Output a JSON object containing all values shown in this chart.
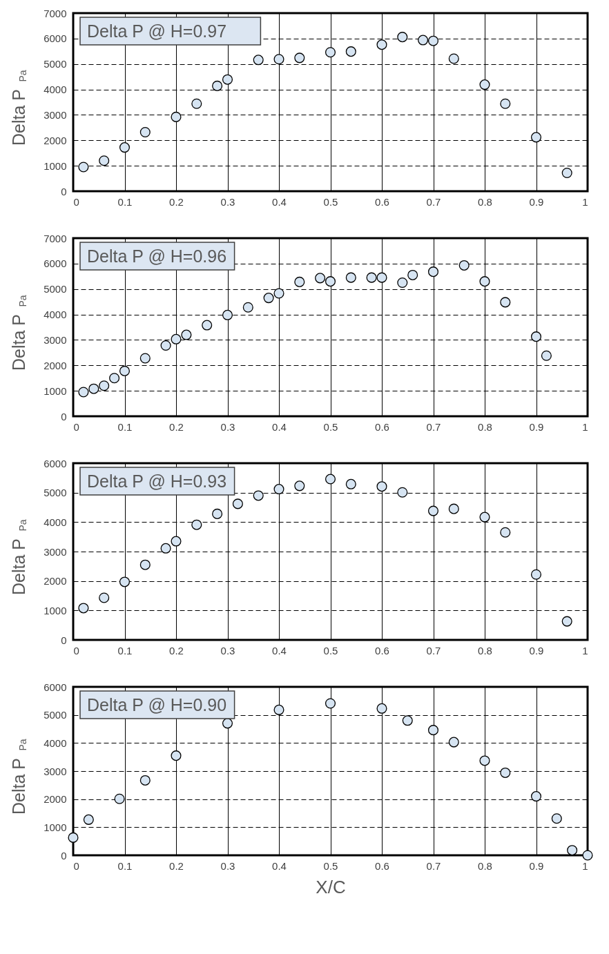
{
  "chart_data": [
    {
      "type": "scatter",
      "title": "Delta P   @  H=0.97",
      "ylabel": "Delta P $_{Pa}$",
      "color": "#d6e4f2",
      "marker": "circle",
      "grid": true,
      "x": [
        0.02,
        0.06,
        0.1,
        0.14,
        0.2,
        0.24,
        0.28,
        0.3,
        0.36,
        0.4,
        0.44,
        0.5,
        0.54,
        0.6,
        0.64,
        0.68,
        0.7,
        0.74,
        0.8,
        0.84,
        0.9,
        0.96
      ],
      "values": [
        950,
        1200,
        1720,
        2320,
        2920,
        3440,
        4140,
        4390,
        5160,
        5190,
        5240,
        5460,
        5490,
        5760,
        6060,
        5940,
        5910,
        5210,
        4190,
        3440,
        2120,
        720
      ],
      "xlim": [
        0,
        1
      ],
      "ylim": [
        0,
        7000
      ],
      "xticks": [
        0,
        0.1,
        0.2,
        0.3,
        0.4,
        0.5,
        0.6,
        0.7,
        0.8,
        0.9,
        1
      ],
      "yticks": [
        0,
        1000,
        2000,
        3000,
        4000,
        5000,
        6000,
        7000
      ]
    },
    {
      "type": "scatter",
      "title": "Delta P @ H=0.96",
      "ylabel": "Delta P $_{Pa}$",
      "color": "#d6e4f2",
      "marker": "circle",
      "grid": true,
      "x": [
        0.02,
        0.04,
        0.06,
        0.08,
        0.1,
        0.14,
        0.18,
        0.2,
        0.22,
        0.26,
        0.3,
        0.34,
        0.38,
        0.4,
        0.44,
        0.48,
        0.5,
        0.54,
        0.58,
        0.6,
        0.64,
        0.66,
        0.7,
        0.76,
        0.8,
        0.84,
        0.9,
        0.92
      ],
      "values": [
        950,
        1080,
        1200,
        1500,
        1780,
        2280,
        2780,
        3030,
        3200,
        3580,
        3980,
        4280,
        4650,
        4830,
        5280,
        5430,
        5300,
        5450,
        5450,
        5450,
        5250,
        5550,
        5680,
        5930,
        5300,
        4480,
        3130,
        2380
      ],
      "xlim": [
        0,
        1
      ],
      "ylim": [
        0,
        7000
      ],
      "xticks": [
        0,
        0.1,
        0.2,
        0.3,
        0.4,
        0.5,
        0.6,
        0.7,
        0.8,
        0.9,
        1
      ],
      "yticks": [
        0,
        1000,
        2000,
        3000,
        4000,
        5000,
        6000,
        7000
      ]
    },
    {
      "type": "scatter",
      "title": "Delta P @ H=0.93",
      "ylabel": "Delta P $_{Pa}$",
      "color": "#d6e4f2",
      "marker": "circle",
      "grid": true,
      "x": [
        0.02,
        0.06,
        0.1,
        0.14,
        0.18,
        0.2,
        0.24,
        0.28,
        0.32,
        0.36,
        0.4,
        0.44,
        0.5,
        0.54,
        0.6,
        0.64,
        0.7,
        0.74,
        0.8,
        0.84,
        0.9,
        0.96
      ],
      "values": [
        1080,
        1430,
        1970,
        2550,
        3110,
        3350,
        3910,
        4280,
        4620,
        4900,
        5120,
        5230,
        5460,
        5290,
        5210,
        5010,
        4380,
        4450,
        4170,
        3650,
        2220,
        630
      ],
      "xlim": [
        0,
        1
      ],
      "ylim": [
        0,
        6000
      ],
      "xticks": [
        0,
        0.1,
        0.2,
        0.3,
        0.4,
        0.5,
        0.6,
        0.7,
        0.8,
        0.9,
        1
      ],
      "yticks": [
        0,
        1000,
        2000,
        3000,
        4000,
        5000,
        6000
      ]
    },
    {
      "type": "scatter",
      "title": "Delta P @ H=0.90",
      "ylabel": "Delta P $_{Pa}$",
      "xlabel": "X/C",
      "color": "#d6e4f2",
      "marker": "circle",
      "grid": true,
      "x": [
        0.0,
        0.03,
        0.09,
        0.14,
        0.2,
        0.3,
        0.4,
        0.5,
        0.6,
        0.65,
        0.7,
        0.74,
        0.8,
        0.84,
        0.9,
        0.94,
        0.97,
        1.0
      ],
      "values": [
        630,
        1270,
        2010,
        2670,
        3550,
        4700,
        5180,
        5410,
        5230,
        4800,
        4460,
        4030,
        3370,
        2940,
        2100,
        1310,
        180,
        0
      ],
      "xlim": [
        0,
        1
      ],
      "ylim": [
        0,
        6000
      ],
      "xticks": [
        0,
        0.1,
        0.2,
        0.3,
        0.4,
        0.5,
        0.6,
        0.7,
        0.8,
        0.9,
        1
      ],
      "yticks": [
        0,
        1000,
        2000,
        3000,
        4000,
        5000,
        6000
      ]
    }
  ]
}
